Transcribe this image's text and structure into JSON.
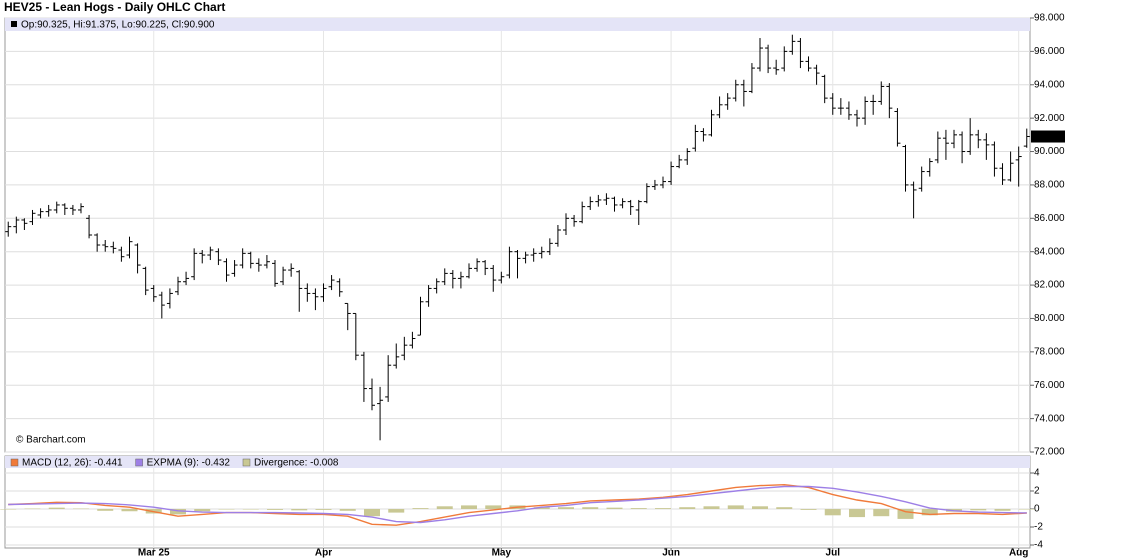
{
  "chart_data": [
    {
      "type": "ohlc",
      "title": "HEV25 - Lean Hogs - Daily OHLC Chart",
      "legend_text": "Op:90.325, Hi:91.375, Lo:90.225, Cl:90.900",
      "watermark": "© Barchart.com",
      "price_tag": "90.900",
      "color": "#000000",
      "grid": true,
      "xlim": [
        -0.4,
        126.4
      ],
      "ylim": [
        72,
        98
      ],
      "yticks": [
        {
          "value": 72,
          "label": "72.000"
        },
        {
          "value": 74,
          "label": "74.000"
        },
        {
          "value": 76,
          "label": "76.000"
        },
        {
          "value": 78,
          "label": "78.000"
        },
        {
          "value": 80,
          "label": "80.000"
        },
        {
          "value": 82,
          "label": "82.000"
        },
        {
          "value": 84,
          "label": "84.000"
        },
        {
          "value": 86,
          "label": "86.000"
        },
        {
          "value": 88,
          "label": "88.000"
        },
        {
          "value": 90,
          "label": "90.000"
        },
        {
          "value": 92,
          "label": "92.000"
        },
        {
          "value": 94,
          "label": "94.000"
        },
        {
          "value": 96,
          "label": "96.000"
        },
        {
          "value": 98,
          "label": "98.000"
        }
      ],
      "ohlc": [
        [
          85.2,
          85.8,
          84.9,
          85.5
        ],
        [
          85.5,
          86.1,
          85.1,
          85.9
        ],
        [
          85.9,
          86.0,
          85.3,
          85.7
        ],
        [
          85.8,
          86.5,
          85.6,
          86.3
        ],
        [
          86.2,
          86.6,
          86.0,
          86.4
        ],
        [
          86.4,
          86.8,
          86.1,
          86.5
        ],
        [
          86.5,
          87.0,
          86.3,
          86.8
        ],
        [
          86.8,
          86.9,
          86.2,
          86.6
        ],
        [
          86.6,
          86.8,
          86.2,
          86.5
        ],
        [
          86.5,
          86.9,
          86.3,
          86.7
        ],
        [
          86.0,
          86.2,
          84.8,
          85.0
        ],
        [
          85.0,
          85.1,
          84.0,
          84.4
        ],
        [
          84.4,
          84.7,
          84.0,
          84.3
        ],
        [
          84.3,
          84.6,
          83.9,
          84.2
        ],
        [
          84.1,
          84.3,
          83.4,
          83.7
        ],
        [
          83.8,
          84.9,
          83.6,
          84.6
        ],
        [
          84.4,
          84.5,
          82.7,
          83.2
        ],
        [
          83.0,
          83.1,
          81.4,
          81.7
        ],
        [
          81.8,
          82.0,
          81.0,
          81.3
        ],
        [
          81.4,
          81.6,
          80.0,
          80.8
        ],
        [
          80.9,
          81.8,
          80.6,
          81.5
        ],
        [
          81.6,
          82.5,
          81.4,
          82.2
        ],
        [
          82.2,
          82.8,
          82.0,
          82.4
        ],
        [
          82.5,
          84.2,
          82.3,
          83.9
        ],
        [
          83.9,
          84.1,
          83.3,
          83.8
        ],
        [
          83.8,
          84.3,
          83.5,
          84.1
        ],
        [
          84.0,
          84.2,
          83.2,
          83.5
        ],
        [
          83.4,
          83.6,
          82.2,
          82.6
        ],
        [
          82.7,
          83.5,
          82.5,
          83.2
        ],
        [
          83.2,
          84.2,
          83.0,
          83.9
        ],
        [
          83.9,
          84.0,
          83.0,
          83.3
        ],
        [
          83.3,
          83.6,
          82.8,
          83.2
        ],
        [
          83.2,
          83.8,
          83.0,
          83.4
        ],
        [
          83.3,
          83.5,
          81.9,
          82.1
        ],
        [
          82.2,
          83.1,
          82.0,
          82.9
        ],
        [
          82.9,
          83.3,
          82.5,
          83.0
        ],
        [
          82.8,
          82.9,
          80.4,
          81.8
        ],
        [
          81.8,
          82.1,
          81.0,
          81.5
        ],
        [
          81.5,
          81.8,
          80.5,
          81.3
        ],
        [
          81.3,
          82.1,
          81.0,
          81.8
        ],
        [
          81.9,
          82.6,
          81.7,
          82.3
        ],
        [
          82.2,
          82.4,
          81.3,
          81.6
        ],
        [
          80.9,
          80.9,
          79.3,
          80.3
        ],
        [
          80.3,
          80.3,
          77.5,
          77.8
        ],
        [
          77.8,
          78.0,
          75.0,
          75.8
        ],
        [
          75.8,
          76.4,
          74.5,
          74.8
        ],
        [
          74.9,
          75.9,
          72.7,
          75.1
        ],
        [
          75.3,
          77.8,
          75.0,
          77.2
        ],
        [
          77.2,
          78.5,
          77.0,
          77.7
        ],
        [
          77.8,
          78.9,
          77.5,
          78.4
        ],
        [
          78.4,
          79.2,
          78.2,
          78.8
        ],
        [
          79.0,
          81.3,
          79.0,
          81.0
        ],
        [
          81.0,
          82.0,
          80.7,
          81.8
        ],
        [
          81.8,
          82.4,
          81.5,
          82.2
        ],
        [
          82.2,
          83.0,
          82.0,
          82.7
        ],
        [
          82.7,
          82.9,
          81.8,
          82.4
        ],
        [
          82.4,
          82.8,
          81.8,
          82.5
        ],
        [
          82.5,
          83.3,
          82.4,
          83.0
        ],
        [
          83.0,
          83.6,
          82.8,
          83.4
        ],
        [
          83.4,
          83.5,
          82.6,
          83.0
        ],
        [
          83.0,
          83.2,
          81.6,
          82.3
        ],
        [
          82.3,
          82.8,
          82.1,
          82.5
        ],
        [
          82.6,
          84.3,
          82.4,
          84.0
        ],
        [
          84.0,
          84.1,
          82.4,
          83.6
        ],
        [
          83.6,
          84.0,
          83.3,
          83.8
        ],
        [
          83.8,
          84.2,
          83.4,
          83.9
        ],
        [
          83.9,
          84.3,
          83.6,
          84.0
        ],
        [
          84.0,
          84.8,
          83.8,
          84.5
        ],
        [
          84.5,
          85.6,
          84.3,
          85.3
        ],
        [
          85.3,
          86.3,
          85.0,
          86.0
        ],
        [
          86.0,
          86.2,
          85.5,
          85.8
        ],
        [
          85.8,
          87.0,
          85.7,
          86.7
        ],
        [
          86.7,
          87.3,
          86.5,
          87.0
        ],
        [
          87.0,
          87.4,
          86.7,
          87.1
        ],
        [
          87.1,
          87.5,
          86.8,
          87.2
        ],
        [
          87.2,
          87.3,
          86.4,
          86.8
        ],
        [
          86.8,
          87.2,
          86.6,
          87.0
        ],
        [
          87.0,
          87.1,
          86.2,
          86.7
        ],
        [
          86.5,
          87.1,
          85.6,
          87.0
        ],
        [
          87.0,
          88.1,
          86.9,
          87.9
        ],
        [
          87.9,
          88.3,
          87.7,
          88.0
        ],
        [
          88.0,
          88.5,
          87.8,
          88.2
        ],
        [
          88.2,
          89.4,
          88.0,
          89.1
        ],
        [
          89.1,
          89.8,
          89.0,
          89.5
        ],
        [
          89.5,
          90.2,
          89.2,
          90.0
        ],
        [
          90.2,
          91.6,
          90.0,
          91.2
        ],
        [
          91.2,
          91.4,
          90.6,
          91.0
        ],
        [
          91.0,
          92.5,
          90.9,
          92.2
        ],
        [
          92.2,
          93.3,
          92.0,
          92.8
        ],
        [
          92.8,
          93.5,
          92.5,
          93.2
        ],
        [
          93.2,
          94.3,
          93.0,
          94.0
        ],
        [
          94.0,
          94.3,
          92.7,
          93.6
        ],
        [
          93.6,
          95.3,
          93.5,
          95.0
        ],
        [
          95.0,
          96.8,
          94.8,
          96.2
        ],
        [
          96.2,
          96.4,
          94.7,
          95.0
        ],
        [
          95.0,
          95.5,
          94.6,
          94.9
        ],
        [
          95.0,
          96.3,
          94.8,
          96.0
        ],
        [
          96.0,
          97.0,
          95.8,
          96.6
        ],
        [
          96.6,
          96.8,
          95.0,
          95.4
        ],
        [
          95.4,
          95.7,
          94.8,
          95.0
        ],
        [
          95.0,
          95.2,
          94.0,
          94.7
        ],
        [
          94.5,
          94.6,
          92.9,
          93.2
        ],
        [
          93.2,
          93.5,
          92.2,
          92.6
        ],
        [
          92.6,
          93.2,
          92.2,
          92.6
        ],
        [
          92.6,
          93.0,
          91.9,
          92.2
        ],
        [
          92.2,
          92.5,
          91.5,
          92.0
        ],
        [
          92.0,
          93.3,
          91.6,
          93.0
        ],
        [
          93.0,
          93.4,
          92.2,
          93.0
        ],
        [
          93.0,
          94.2,
          92.8,
          93.9
        ],
        [
          93.9,
          94.1,
          92.0,
          92.6
        ],
        [
          92.4,
          92.6,
          90.3,
          90.5
        ],
        [
          90.3,
          90.4,
          87.6,
          88.0
        ],
        [
          88.0,
          88.2,
          86.0,
          87.7
        ],
        [
          87.8,
          89.1,
          87.6,
          88.8
        ],
        [
          88.8,
          89.6,
          88.5,
          89.4
        ],
        [
          89.5,
          91.2,
          89.3,
          90.8
        ],
        [
          90.8,
          91.3,
          89.5,
          90.5
        ],
        [
          90.5,
          91.3,
          90.2,
          91.0
        ],
        [
          91.0,
          91.2,
          89.3,
          90.0
        ],
        [
          90.0,
          92.0,
          89.8,
          91.0
        ],
        [
          91.0,
          91.3,
          90.2,
          90.7
        ],
        [
          90.7,
          91.1,
          89.5,
          90.4
        ],
        [
          90.4,
          90.6,
          88.5,
          89.0
        ],
        [
          89.0,
          89.3,
          88.0,
          88.3
        ],
        [
          88.3,
          90.0,
          88.2,
          89.3
        ],
        [
          89.5,
          90.3,
          87.9,
          89.7
        ],
        [
          90.325,
          91.375,
          90.225,
          90.9
        ]
      ]
    },
    {
      "type": "line",
      "grid": true,
      "xlim": [
        -0.4,
        126.4
      ],
      "ylim": [
        -4,
        4
      ],
      "yticks": [
        -4,
        -2,
        0,
        2,
        4
      ],
      "xticks": [
        {
          "value": 18,
          "label": "Mar 25"
        },
        {
          "value": 39,
          "label": "Apr"
        },
        {
          "value": 61,
          "label": "May"
        },
        {
          "value": 82,
          "label": "Jun"
        },
        {
          "value": 102,
          "label": "Jul"
        },
        {
          "value": 125,
          "label": "Aug"
        }
      ],
      "x": [
        0,
        3,
        6,
        9,
        12,
        15,
        18,
        21,
        24,
        27,
        30,
        33,
        36,
        39,
        42,
        45,
        48,
        51,
        54,
        57,
        60,
        63,
        66,
        69,
        72,
        75,
        78,
        81,
        84,
        87,
        90,
        93,
        96,
        99,
        102,
        105,
        108,
        111,
        114,
        117,
        120,
        123,
        126
      ],
      "series": [
        {
          "name": "MACD (12, 26): -0.441",
          "color": "#f07a3a",
          "style": "line",
          "values": [
            0.5,
            0.6,
            0.75,
            0.7,
            0.4,
            0.2,
            -0.3,
            -0.8,
            -0.6,
            -0.4,
            -0.4,
            -0.5,
            -0.6,
            -0.6,
            -0.8,
            -1.7,
            -1.8,
            -1.4,
            -0.9,
            -0.4,
            -0.1,
            0.2,
            0.4,
            0.6,
            0.9,
            1.0,
            1.1,
            1.3,
            1.6,
            2.0,
            2.4,
            2.6,
            2.7,
            2.4,
            1.6,
            1.0,
            0.6,
            -0.3,
            -0.6,
            -0.5,
            -0.5,
            -0.6,
            -0.441
          ]
        },
        {
          "name": "EXPMA (9): -0.432",
          "color": "#9d7fe6",
          "style": "line",
          "values": [
            0.5,
            0.55,
            0.6,
            0.65,
            0.6,
            0.45,
            0.2,
            -0.2,
            -0.35,
            -0.4,
            -0.4,
            -0.4,
            -0.45,
            -0.5,
            -0.6,
            -0.9,
            -1.4,
            -1.5,
            -1.2,
            -0.8,
            -0.5,
            -0.2,
            0.2,
            0.4,
            0.7,
            0.85,
            1.0,
            1.2,
            1.4,
            1.7,
            2.0,
            2.3,
            2.5,
            2.5,
            2.3,
            1.9,
            1.4,
            0.8,
            0.1,
            -0.2,
            -0.35,
            -0.4,
            -0.432
          ]
        },
        {
          "name": "Divergence: -0.008",
          "color": "#c9c894",
          "style": "bar",
          "values": [
            0.0,
            0.05,
            0.15,
            0.05,
            -0.2,
            -0.25,
            -0.5,
            -0.6,
            -0.25,
            0.0,
            0.0,
            -0.1,
            -0.15,
            -0.1,
            -0.2,
            -0.8,
            -0.4,
            0.1,
            0.3,
            0.4,
            0.4,
            0.4,
            0.2,
            0.2,
            0.2,
            0.15,
            0.1,
            0.1,
            0.2,
            0.3,
            0.4,
            0.3,
            0.2,
            -0.1,
            -0.7,
            -0.9,
            -0.8,
            -1.1,
            -0.7,
            -0.3,
            -0.15,
            -0.2,
            -0.008
          ]
        }
      ]
    }
  ]
}
